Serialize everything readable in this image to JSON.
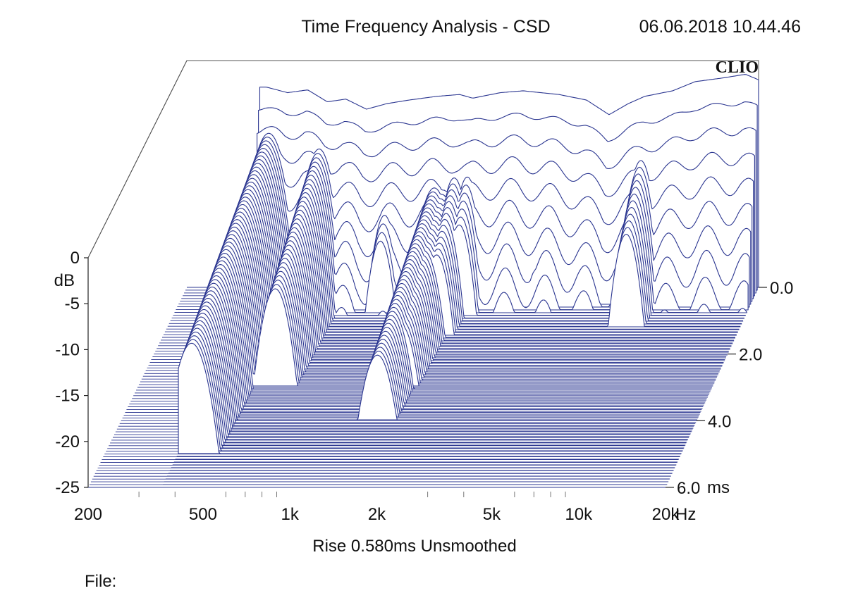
{
  "header": {
    "title": "Time Frequency Analysis - CSD",
    "timestamp": "06.06.2018 10.44.46",
    "brand": "CLIO"
  },
  "footer": {
    "settings": "Rise 0.580ms   Unsmoothed",
    "file_label": "File:"
  },
  "colors": {
    "trace": "#2a3590",
    "frame": "#555555",
    "background": "#ffffff"
  },
  "chart_data": {
    "type": "waterfall",
    "title": "Time Frequency Analysis - CSD",
    "x_axis": {
      "label": "Hz",
      "scale": "log",
      "range": [
        200,
        20000
      ],
      "ticks": [
        {
          "value": 200,
          "label": "200"
        },
        {
          "value": 500,
          "label": "500"
        },
        {
          "value": 1000,
          "label": "1k"
        },
        {
          "value": 2000,
          "label": "2k"
        },
        {
          "value": 5000,
          "label": "5k"
        },
        {
          "value": 10000,
          "label": "10k"
        },
        {
          "value": 20000,
          "label": "20k"
        }
      ]
    },
    "y_axis": {
      "label": "dB",
      "range": [
        -25,
        0
      ],
      "ticks": [
        {
          "value": 0,
          "label": "0"
        },
        {
          "value": -5,
          "label": "-5"
        },
        {
          "value": -10,
          "label": "-10"
        },
        {
          "value": -15,
          "label": "-15"
        },
        {
          "value": -20,
          "label": "-20"
        },
        {
          "value": -25,
          "label": "-25"
        }
      ]
    },
    "z_axis": {
      "label": "ms",
      "range": [
        0,
        6
      ],
      "ticks": [
        {
          "value": 0,
          "label": "0.0"
        },
        {
          "value": 2,
          "label": "2.0"
        },
        {
          "value": 4,
          "label": "4.0"
        },
        {
          "value": 6,
          "label": "6.0"
        }
      ]
    },
    "frequency_range_hz": [
      360,
      20000
    ],
    "slice_count": 72,
    "initial_response_db": [
      {
        "f": 380,
        "db": -3.2
      },
      {
        "f": 450,
        "db": -3.8
      },
      {
        "f": 530,
        "db": -3.5
      },
      {
        "f": 620,
        "db": -4.8
      },
      {
        "f": 720,
        "db": -4.5
      },
      {
        "f": 850,
        "db": -5.6
      },
      {
        "f": 1000,
        "db": -5.0
      },
      {
        "f": 1200,
        "db": -4.6
      },
      {
        "f": 1500,
        "db": -4.2
      },
      {
        "f": 1800,
        "db": -4.0
      },
      {
        "f": 2000,
        "db": -4.4
      },
      {
        "f": 2500,
        "db": -3.8
      },
      {
        "f": 3000,
        "db": -3.6
      },
      {
        "f": 4000,
        "db": -4.0
      },
      {
        "f": 5000,
        "db": -4.6
      },
      {
        "f": 6000,
        "db": -6.2
      },
      {
        "f": 7000,
        "db": -5.0
      },
      {
        "f": 8000,
        "db": -4.2
      },
      {
        "f": 10000,
        "db": -3.6
      },
      {
        "f": 12000,
        "db": -2.6
      },
      {
        "f": 15000,
        "db": -2.2
      },
      {
        "f": 18000,
        "db": -1.8
      },
      {
        "f": 20000,
        "db": -2.4
      }
    ],
    "resonances": [
      {
        "f": 400,
        "db": -7.0,
        "decay_ms": 5.0
      },
      {
        "f": 600,
        "db": -8.5,
        "decay_ms": 3.0
      },
      {
        "f": 1050,
        "db": -11.5,
        "decay_ms": 0.8
      },
      {
        "f": 1550,
        "db": -12.0,
        "decay_ms": 4.0
      },
      {
        "f": 1650,
        "db": -12.5,
        "decay_ms": 3.0
      },
      {
        "f": 1800,
        "db": -10.5,
        "decay_ms": 1.5
      },
      {
        "f": 2000,
        "db": -9.5,
        "decay_ms": 0.9
      },
      {
        "f": 3600,
        "db": -15.0,
        "decay_ms": 0.6
      },
      {
        "f": 8000,
        "db": -9.0,
        "decay_ms": 1.2
      }
    ],
    "floor_db": -25,
    "legend": null
  }
}
